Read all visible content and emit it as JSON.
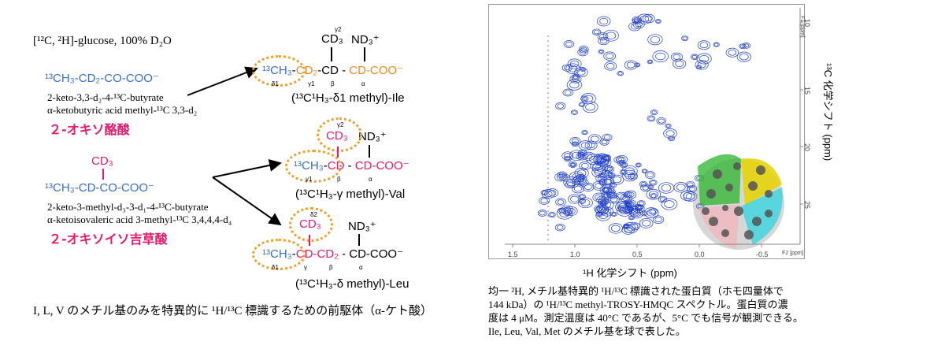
{
  "left": {
    "condition": "[¹²C, ²H]-glucose, 100% D₂O",
    "precursor1": {
      "formula": "¹³CH₃-CD₂-CO-COO⁻",
      "name_line1": "2-keto-3,3-d₂-4-¹³C-butyrate",
      "name_line2": "α-ketobutyric acid methyl-¹³C 3,3-d₂",
      "jp_name": "２-オキソ酪酸"
    },
    "precursor2": {
      "cd3": "CD₃",
      "formula": "¹³CH₃-CD-CO-COO⁻",
      "name_line1": "2-keto-3-methyl-d₃-3-d₁-4-¹³C-butyrate",
      "name_line2": "α-ketoisovaleric acid 3-methyl-¹³C 3,4,4,4-d₄",
      "jp_name": "２-オキソイソ吉草酸"
    },
    "ile": {
      "top_cd3": "CD₃",
      "top_nd3": "ND₃⁺",
      "gamma2": "γ2",
      "chain": "¹³CH₃-CD₂-CD - CD-COO⁻",
      "labels": [
        "δ1",
        "γ1",
        "β",
        "α"
      ],
      "caption": "(¹³C¹H₃-δ1 methyl)-Ile"
    },
    "val": {
      "top_cd3": "CD₃",
      "top_nd3": "ND₃⁺",
      "gamma2": "γ2",
      "chain": "¹³CH₃-CD - CD-COO⁻",
      "labels": [
        "γ1",
        "β",
        "α"
      ],
      "caption": "(¹³C¹H₃-γ methyl)-Val"
    },
    "leu": {
      "top_cd3": "CD₃",
      "top_nd3": "ND₃⁺",
      "delta2": "δ2",
      "chain": "¹³CH₃-CD-CD₂ - CD-COO⁻",
      "labels": [
        "δ1",
        "γ",
        "β",
        "α"
      ],
      "caption": "(¹³C¹H₃-δ methyl)-Leu"
    },
    "bottom_caption": "I, L, V のメチル基のみを特異的に ¹H/¹³C 標識するための前駆体（α-ケト酸）"
  },
  "spectrum": {
    "x_ticks": [
      "1.5",
      "1.0",
      "0.5",
      "0.0",
      "-0.5"
    ],
    "x_unit": "F2 [ppm]",
    "x_label": "¹H 化学シフト (ppm)",
    "y_ticks": [
      "10",
      "15",
      "20",
      "25"
    ],
    "y_unit": "F1 [ppm]",
    "y_label": "¹³C 化学シフト (ppm)",
    "contour_color": "#1f3fc8"
  },
  "right_caption": {
    "line1": "均一 ²H, メチル基特異的 ¹H/¹³C 標識された蛋白質（ホモ四量体で",
    "line2": "144 kDa）の ¹H/¹³C methyl-TROSY-HMQC スペクトル。蛋白質の濃",
    "line3": "度は 4 μM。測定温度は 40°C であるが、5°C でも信号が観測できる。",
    "line4": "Ile, Leu, Val, Met のメチル基を球で表した。"
  }
}
